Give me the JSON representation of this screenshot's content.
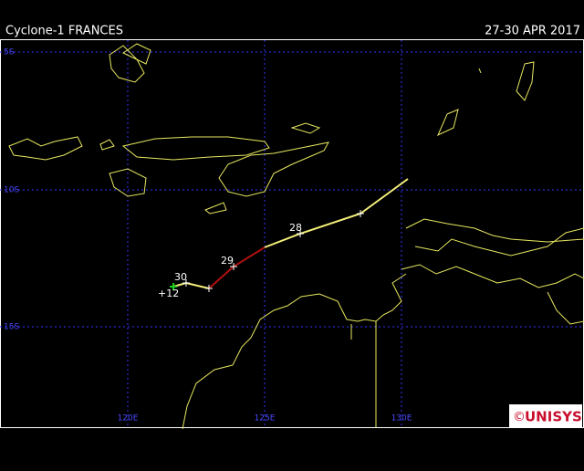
{
  "header": {
    "title": "Cyclone-1 FRANCES",
    "dates": "27-30 APR 2017"
  },
  "grid": {
    "latitudes": [
      "5S",
      "10S",
      "15S"
    ],
    "longitudes": [
      "120E",
      "125E",
      "130E"
    ]
  },
  "track": {
    "labels": [
      "28",
      "29",
      "30",
      "+12"
    ]
  },
  "logo": {
    "symbol": "©",
    "text": "UNISYS"
  }
}
